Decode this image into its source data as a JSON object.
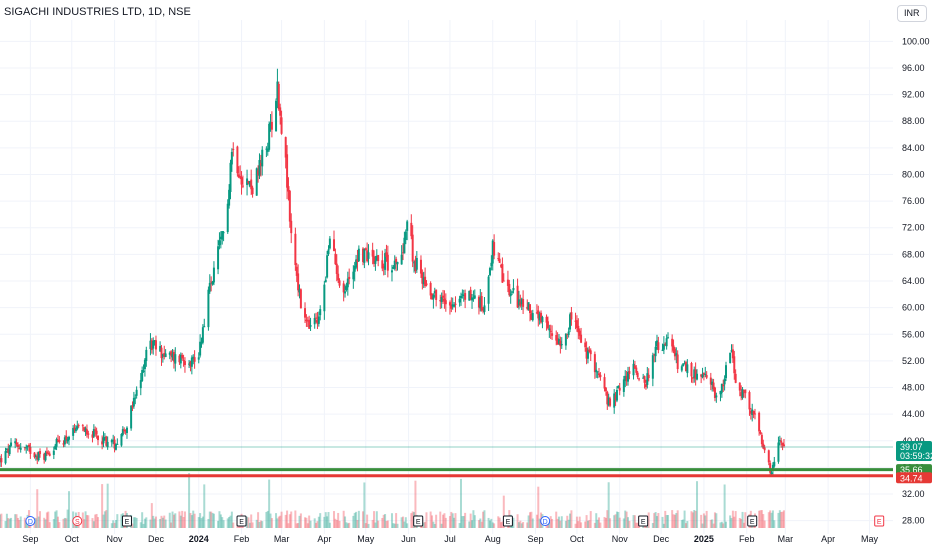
{
  "header": {
    "title": "SIGACHI INDUSTRIES LTD, 1D, NSE",
    "currency": "INR"
  },
  "colors": {
    "up": "#089981",
    "down": "#f23645",
    "support": "#388e3c",
    "resistance": "#e53935",
    "price_badge": "#089981",
    "grid": "#f0f3fa",
    "axis_text": "#131722"
  },
  "chart_data": {
    "type": "candlestick",
    "symbol": "SIGACHI INDUSTRIES LTD",
    "interval": "1D",
    "exchange": "NSE",
    "y_axis": {
      "ticks": [
        "100.00",
        "96.00",
        "92.00",
        "88.00",
        "84.00",
        "80.00",
        "76.00",
        "72.00",
        "68.00",
        "64.00",
        "60.00",
        "56.00",
        "52.00",
        "48.00",
        "44.00",
        "40.00",
        "36.00",
        "32.00",
        "28.00"
      ],
      "ylim": [
        27.8,
        100.5
      ]
    },
    "x_axis": {
      "ticks": [
        {
          "label": "Sep",
          "date": "2023-09-01"
        },
        {
          "label": "Oct",
          "date": "2023-10-01"
        },
        {
          "label": "Nov",
          "date": "2023-11-01"
        },
        {
          "label": "Dec",
          "date": "2023-12-01"
        },
        {
          "label": "2024",
          "date": "2024-01-01",
          "bold": true
        },
        {
          "label": "Feb",
          "date": "2024-02-01"
        },
        {
          "label": "Mar",
          "date": "2024-03-01"
        },
        {
          "label": "Apr",
          "date": "2024-04-01"
        },
        {
          "label": "May",
          "date": "2024-05-01"
        },
        {
          "label": "Jun",
          "date": "2024-06-01"
        },
        {
          "label": "Jul",
          "date": "2024-07-01"
        },
        {
          "label": "Aug",
          "date": "2024-08-01"
        },
        {
          "label": "Sep",
          "date": "2024-09-01"
        },
        {
          "label": "Oct",
          "date": "2024-10-01"
        },
        {
          "label": "Nov",
          "date": "2024-11-01"
        },
        {
          "label": "Dec",
          "date": "2024-12-01"
        },
        {
          "label": "2025",
          "date": "2025-01-01",
          "bold": true
        },
        {
          "label": "Feb",
          "date": "2025-02-01"
        },
        {
          "label": "Mar",
          "date": "2025-03-01"
        },
        {
          "label": "Apr",
          "date": "2025-04-01"
        },
        {
          "label": "May",
          "date": "2025-05-01"
        }
      ],
      "range": [
        "2023-08-10",
        "2025-05-18"
      ]
    },
    "price_path": [
      [
        "2023-08-10",
        37.0
      ],
      [
        "2023-08-20",
        39.5
      ],
      [
        "2023-09-01",
        38.5
      ],
      [
        "2023-09-10",
        37.5
      ],
      [
        "2023-09-20",
        39.5
      ],
      [
        "2023-10-01",
        41.0
      ],
      [
        "2023-10-10",
        42.0
      ],
      [
        "2023-10-20",
        40.5
      ],
      [
        "2023-11-01",
        39.5
      ],
      [
        "2023-11-10",
        42.5
      ],
      [
        "2023-11-20",
        49.0
      ],
      [
        "2023-11-25",
        55.0
      ],
      [
        "2023-12-01",
        54.0
      ],
      [
        "2023-12-10",
        52.5
      ],
      [
        "2023-12-20",
        52.5
      ],
      [
        "2023-12-31",
        52.0
      ],
      [
        "2024-01-08",
        62.0
      ],
      [
        "2024-01-15",
        68.0
      ],
      [
        "2024-01-20",
        72.0
      ],
      [
        "2024-01-25",
        84.0
      ],
      [
        "2024-02-01",
        80.0
      ],
      [
        "2024-02-08",
        78.0
      ],
      [
        "2024-02-13",
        80.0
      ],
      [
        "2024-02-20",
        85.0
      ],
      [
        "2024-02-27",
        93.0
      ],
      [
        "2024-03-03",
        84.0
      ],
      [
        "2024-03-08",
        71.0
      ],
      [
        "2024-03-12",
        65.0
      ],
      [
        "2024-03-15",
        60.0
      ],
      [
        "2024-03-20",
        57.0
      ],
      [
        "2024-03-28",
        58.0
      ],
      [
        "2024-04-05",
        70.0
      ],
      [
        "2024-04-15",
        62.0
      ],
      [
        "2024-04-25",
        68.0
      ],
      [
        "2024-05-05",
        68.0
      ],
      [
        "2024-05-15",
        67.0
      ],
      [
        "2024-05-25",
        66.0
      ],
      [
        "2024-05-31",
        73.0
      ],
      [
        "2024-06-05",
        67.0
      ],
      [
        "2024-06-15",
        63.0
      ],
      [
        "2024-06-25",
        61.0
      ],
      [
        "2024-07-05",
        61.0
      ],
      [
        "2024-07-15",
        62.0
      ],
      [
        "2024-07-25",
        60.0
      ],
      [
        "2024-08-01",
        69.0
      ],
      [
        "2024-08-10",
        63.0
      ],
      [
        "2024-08-20",
        61.0
      ],
      [
        "2024-08-31",
        59.0
      ],
      [
        "2024-09-10",
        56.5
      ],
      [
        "2024-09-20",
        55.0
      ],
      [
        "2024-09-28",
        59.0
      ],
      [
        "2024-10-05",
        54.0
      ],
      [
        "2024-10-15",
        51.0
      ],
      [
        "2024-10-25",
        45.0
      ],
      [
        "2024-11-01",
        48.0
      ],
      [
        "2024-11-10",
        51.0
      ],
      [
        "2024-11-20",
        49.0
      ],
      [
        "2024-11-28",
        54.0
      ],
      [
        "2024-12-05",
        55.0
      ],
      [
        "2024-12-15",
        51.0
      ],
      [
        "2024-12-25",
        50.0
      ],
      [
        "2025-01-05",
        49.0
      ],
      [
        "2025-01-12",
        46.0
      ],
      [
        "2025-01-20",
        54.0
      ],
      [
        "2025-01-25",
        48.0
      ],
      [
        "2025-02-01",
        46.0
      ],
      [
        "2025-02-08",
        43.0
      ],
      [
        "2025-02-14",
        38.0
      ],
      [
        "2025-02-19",
        34.8
      ],
      [
        "2025-02-24",
        39.5
      ],
      [
        "2025-02-28",
        39.07
      ]
    ],
    "last_price": "39.07",
    "countdown": "03:59:32",
    "support_level": {
      "price": 35.66,
      "label": "35.66"
    },
    "resistance_level": {
      "price": 34.74,
      "label": "34.74"
    },
    "events": [
      {
        "type": "D",
        "date": "2023-09-01",
        "color": "#2962ff"
      },
      {
        "type": "S",
        "date": "2023-10-05",
        "color": "#f23645"
      },
      {
        "type": "E",
        "date": "2023-11-10",
        "color": "#131722"
      },
      {
        "type": "E",
        "date": "2024-02-01",
        "color": "#131722"
      },
      {
        "type": "E",
        "date": "2024-06-08",
        "color": "#131722"
      },
      {
        "type": "E",
        "date": "2024-08-12",
        "color": "#131722"
      },
      {
        "type": "D",
        "date": "2024-09-08",
        "color": "#2962ff"
      },
      {
        "type": "E",
        "date": "2024-11-18",
        "color": "#131722"
      },
      {
        "type": "E",
        "date": "2025-02-05",
        "color": "#131722"
      },
      {
        "type": "E",
        "date": "2025-05-08",
        "color": "#f23645"
      }
    ]
  }
}
